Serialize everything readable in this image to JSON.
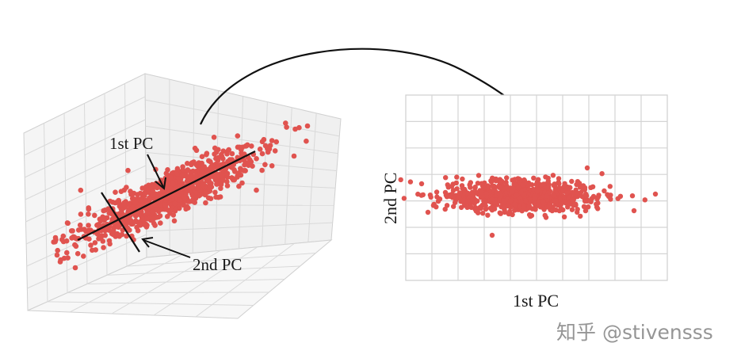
{
  "left_panel": {
    "pc1_label": "1st PC",
    "pc2_label": "2nd PC"
  },
  "right_panel": {
    "x_label": "1st PC",
    "y_label": "2nd PC"
  },
  "watermark": "知乎 @stivensss",
  "colors": {
    "points": "#e0534f",
    "grid": "#d4d4d4",
    "pane": "#f2f2f2",
    "ink": "#1a1a1a"
  }
}
